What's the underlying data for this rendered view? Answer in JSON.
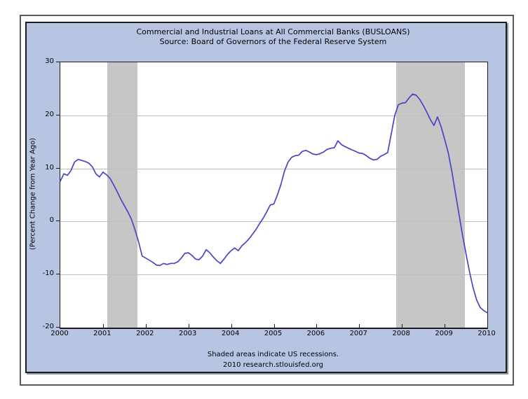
{
  "chart_data": {
    "type": "line",
    "title": "Commercial and Industrial Loans at All Commercial Banks (BUSLOANS)",
    "subtitle": "Source: Board of Governors of the Federal Reserve System",
    "ylabel": "(Percent Change from Year Ago)",
    "footer": {
      "line1": "Shaded areas indicate US recessions.",
      "line2": "2010 research.stlouisfed.org"
    },
    "xlim": [
      2000,
      2010
    ],
    "ylim": [
      -20,
      30
    ],
    "yticks": [
      30,
      20,
      10,
      0,
      -10,
      -20
    ],
    "xticks": [
      "2000",
      "2001",
      "2002",
      "2003",
      "2004",
      "2005",
      "2006",
      "2007",
      "2008",
      "2009",
      "2010"
    ],
    "grid": "horizontal",
    "recession_bands": [
      [
        2001.1,
        2001.8
      ],
      [
        2007.87,
        2009.47
      ]
    ],
    "series": [
      {
        "name": "BUSLOANS percent change from year ago",
        "start_year": 2000,
        "frequency": "monthly",
        "values": [
          7.6,
          9.0,
          8.7,
          9.6,
          11.2,
          11.7,
          11.5,
          11.3,
          11.0,
          10.3,
          9.0,
          8.4,
          9.3,
          8.8,
          8.1,
          6.9,
          5.6,
          4.2,
          3.0,
          1.8,
          0.4,
          -1.6,
          -3.8,
          -6.5,
          -6.9,
          -7.3,
          -7.7,
          -8.2,
          -8.3,
          -7.9,
          -8.1,
          -7.9,
          -7.9,
          -7.6,
          -6.9,
          -6.0,
          -5.9,
          -6.4,
          -7.1,
          -7.2,
          -6.5,
          -5.3,
          -5.9,
          -6.7,
          -7.4,
          -7.9,
          -7.1,
          -6.2,
          -5.5,
          -5.0,
          -5.5,
          -4.6,
          -4.0,
          -3.3,
          -2.4,
          -1.5,
          -0.4,
          0.6,
          1.8,
          3.1,
          3.3,
          5.0,
          7.0,
          9.5,
          11.2,
          12.1,
          12.4,
          12.5,
          13.2,
          13.4,
          13.1,
          12.7,
          12.6,
          12.8,
          13.1,
          13.6,
          13.8,
          13.9,
          15.2,
          14.5,
          14.1,
          13.8,
          13.5,
          13.2,
          12.9,
          12.8,
          12.4,
          11.9,
          11.6,
          11.7,
          12.3,
          12.6,
          13.0,
          16.5,
          20.0,
          22.0,
          22.3,
          22.4,
          23.3,
          24.0,
          23.8,
          23.0,
          21.9,
          20.6,
          19.2,
          18.1,
          19.7,
          17.9,
          15.5,
          13.0,
          9.5,
          5.5,
          1.5,
          -2.5,
          -6.0,
          -9.5,
          -12.5,
          -14.8,
          -16.2,
          -16.8,
          -17.2
        ]
      }
    ],
    "colors": {
      "panel_background": "#b7c5e3",
      "plot_background": "#ffffff",
      "line": "#4845c7",
      "recession_band": "#c6c6c6",
      "gridline": "#bfbfbf",
      "axis": "#1c1c1c"
    }
  }
}
